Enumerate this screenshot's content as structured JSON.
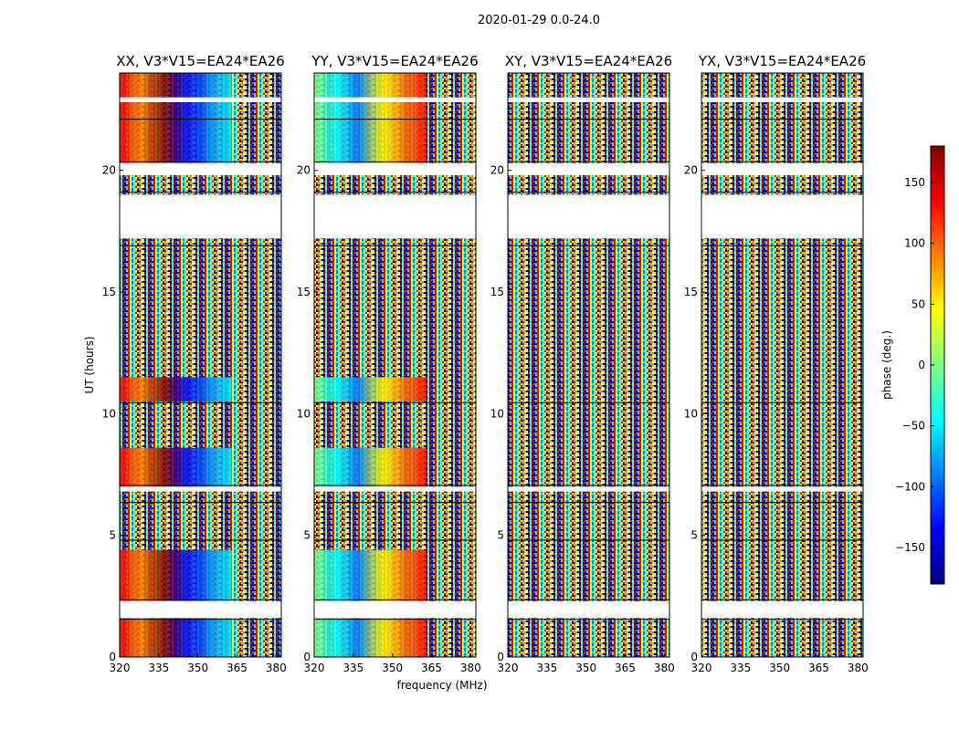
{
  "chart_data": {
    "type": "heatmap",
    "suptitle": "2020-01-29 0.0-24.0",
    "xlabel": "frequency (MHz)",
    "ylabel": "UT (hours)",
    "xlim": [
      320,
      382
    ],
    "ylim": [
      0,
      24
    ],
    "x_ticks": [
      320,
      335,
      350,
      365,
      380
    ],
    "y_ticks": [
      0,
      5,
      10,
      15,
      20
    ],
    "colorbar": {
      "label": "phase (deg.)",
      "range": [
        -180,
        180
      ],
      "ticks": [
        -150,
        -100,
        -50,
        0,
        50,
        100,
        150
      ],
      "colormap": [
        "#00007f",
        "#0000ff",
        "#007fff",
        "#00ffff",
        "#7fff7f",
        "#ffff00",
        "#ff7f00",
        "#ff0000",
        "#7f0000"
      ]
    },
    "panels": [
      {
        "title": "XX, V3*V15=EA24*EA26",
        "pol": "XX",
        "phase_slope": "red at low frequency to blue near 360 MHz"
      },
      {
        "title": "YY, V3*V15=EA24*EA26",
        "pol": "YY",
        "phase_slope": "blue at low frequency to red near 360 MHz"
      },
      {
        "title": "XY, V3*V15=EA24*EA26",
        "pol": "XY",
        "phase_slope": "none (noise)"
      },
      {
        "title": "YX, V3*V15=EA24*EA26",
        "pol": "YX",
        "phase_slope": "none (noise)"
      }
    ],
    "data_gaps_ut_hours": [
      [
        1.6,
        2.3
      ],
      [
        6.8,
        7.0
      ],
      [
        17.2,
        19.0
      ],
      [
        19.8,
        20.3
      ],
      [
        22.8,
        23.0
      ]
    ]
  }
}
